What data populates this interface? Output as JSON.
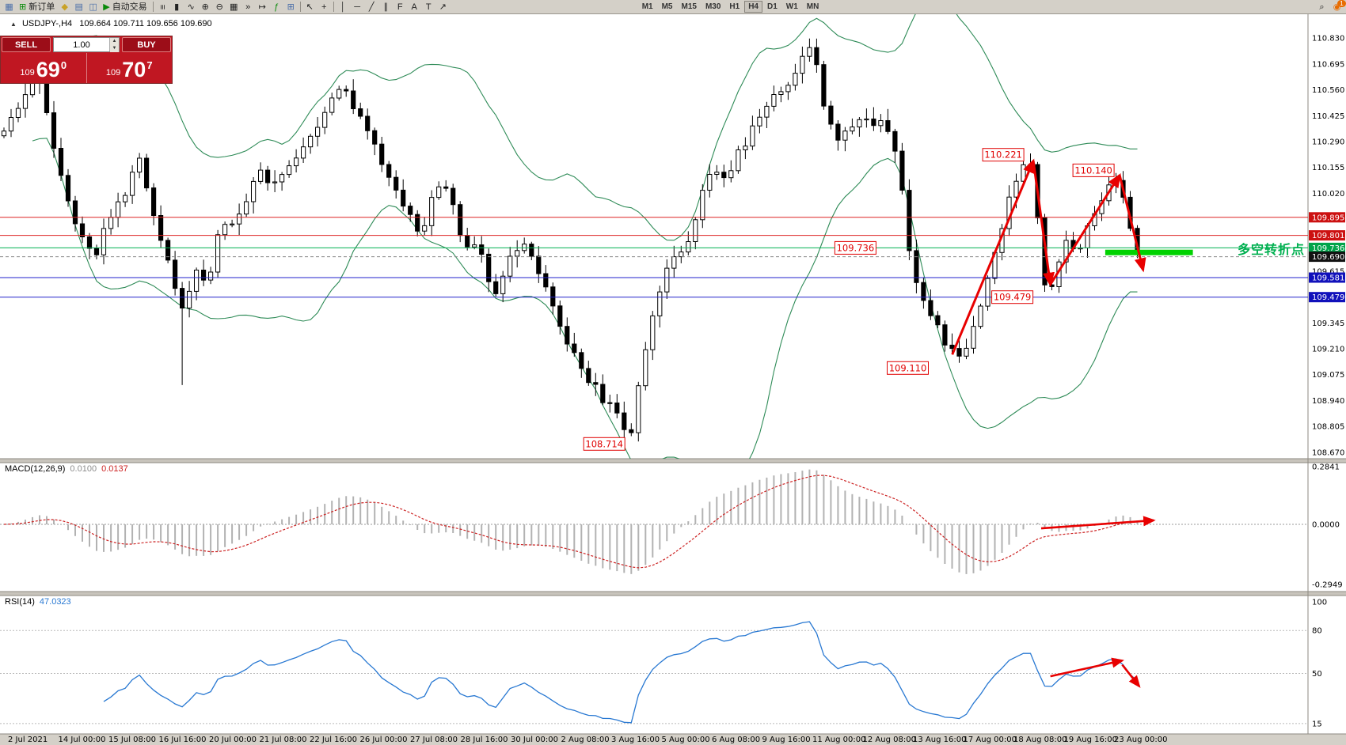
{
  "toolbar": {
    "new_order": {
      "label": "新订单",
      "icon": "⊞"
    },
    "auto_trading": {
      "label": "自动交易",
      "icon": "▶"
    },
    "left_icons": [
      {
        "name": "chart-window-icon",
        "glyph": "▦",
        "color": "#4a6ea9"
      }
    ],
    "quick_icons": [
      {
        "name": "favorites-icon",
        "glyph": "◆",
        "color": "#c9a227"
      },
      {
        "name": "navigator-icon",
        "glyph": "▤",
        "color": "#4a6ea9"
      },
      {
        "name": "terminal-icon",
        "glyph": "◫",
        "color": "#4a6ea9"
      }
    ],
    "chart_tool_icons": [
      {
        "name": "bar-chart-icon",
        "glyph": "≡",
        "rotate": true
      },
      {
        "name": "candlestick-chart-icon",
        "glyph": "▮"
      },
      {
        "name": "line-chart-icon",
        "glyph": "∿"
      },
      {
        "name": "zoom-in-icon",
        "glyph": "⊕"
      },
      {
        "name": "zoom-out-icon",
        "glyph": "⊖"
      },
      {
        "name": "tile-windows-icon",
        "glyph": "▦"
      },
      {
        "name": "auto-scroll-icon",
        "glyph": "»"
      },
      {
        "name": "chart-shift-icon",
        "glyph": "↦"
      },
      {
        "name": "indicators-icon",
        "glyph": "ƒ",
        "color": "#0a8a0a"
      },
      {
        "name": "new-chart-icon",
        "glyph": "⊞",
        "color": "#4a6ea9"
      }
    ],
    "cursor_icons": [
      {
        "name": "cursor-icon",
        "glyph": "↖"
      },
      {
        "name": "crosshair-icon",
        "glyph": "+"
      }
    ],
    "object_icons": [
      {
        "name": "vertical-line-icon",
        "glyph": "│"
      },
      {
        "name": "horizontal-line-icon",
        "glyph": "─"
      },
      {
        "name": "trendline-icon",
        "glyph": "╱"
      },
      {
        "name": "channel-icon",
        "glyph": "∥"
      },
      {
        "name": "fibonacci-icon",
        "glyph": "F"
      },
      {
        "name": "text-icon",
        "glyph": "A"
      },
      {
        "name": "label-icon",
        "glyph": "T"
      },
      {
        "name": "arrows-icon",
        "glyph": "↗"
      }
    ],
    "timeframes": [
      "M1",
      "M5",
      "M15",
      "M30",
      "H1",
      "H4",
      "D1",
      "W1",
      "MN"
    ],
    "active_timeframe": "H4",
    "right_icons": [
      {
        "name": "search-icon",
        "glyph": "⌕"
      },
      {
        "name": "notifications-icon",
        "glyph": "◉",
        "color": "#e86c00",
        "badge": "1"
      }
    ]
  },
  "chart_header": {
    "symbol_title": "USDJPY-,H4",
    "ohlc": "109.664 109.711 109.656 109.690"
  },
  "trade_panel": {
    "sell_label": "SELL",
    "buy_label": "BUY",
    "lot_size": "1.00",
    "sell_price_prefix": "109",
    "sell_price_big": "69",
    "sell_price_sup": "0",
    "buy_price_prefix": "109",
    "buy_price_big": "70",
    "buy_price_sup": "7"
  },
  "price_axis": {
    "ticks": [
      "110.830",
      "110.695",
      "110.560",
      "110.425",
      "110.290",
      "110.155",
      "110.020",
      "109.615",
      "109.345",
      "109.210",
      "109.075",
      "108.940",
      "108.805",
      "108.670"
    ]
  },
  "chart_data": {
    "type": "candlestick",
    "symbol": "USDJPY",
    "timeframe": "H4",
    "candle_count": 160,
    "candles_span": 0.872,
    "path_anchors": [
      [
        0.0,
        110.32
      ],
      [
        0.015,
        110.52
      ],
      [
        0.028,
        110.62
      ],
      [
        0.04,
        110.22
      ],
      [
        0.052,
        109.92
      ],
      [
        0.062,
        109.8
      ],
      [
        0.07,
        109.7
      ],
      [
        0.08,
        109.88
      ],
      [
        0.093,
        110.02
      ],
      [
        0.104,
        110.2
      ],
      [
        0.117,
        109.88
      ],
      [
        0.127,
        109.66
      ],
      [
        0.137,
        109.4
      ],
      [
        0.147,
        109.62
      ],
      [
        0.156,
        109.54
      ],
      [
        0.167,
        109.88
      ],
      [
        0.179,
        109.86
      ],
      [
        0.189,
        110.04
      ],
      [
        0.197,
        110.16
      ],
      [
        0.206,
        110.04
      ],
      [
        0.219,
        110.16
      ],
      [
        0.231,
        110.28
      ],
      [
        0.244,
        110.42
      ],
      [
        0.255,
        110.55
      ],
      [
        0.262,
        110.58
      ],
      [
        0.271,
        110.44
      ],
      [
        0.282,
        110.3
      ],
      [
        0.292,
        110.16
      ],
      [
        0.302,
        110.02
      ],
      [
        0.314,
        109.88
      ],
      [
        0.321,
        109.78
      ],
      [
        0.329,
        110.0
      ],
      [
        0.337,
        110.1
      ],
      [
        0.345,
        110.0
      ],
      [
        0.352,
        109.78
      ],
      [
        0.359,
        109.7
      ],
      [
        0.365,
        109.76
      ],
      [
        0.371,
        109.58
      ],
      [
        0.377,
        109.46
      ],
      [
        0.384,
        109.58
      ],
      [
        0.391,
        109.72
      ],
      [
        0.399,
        109.74
      ],
      [
        0.407,
        109.68
      ],
      [
        0.416,
        109.52
      ],
      [
        0.424,
        109.38
      ],
      [
        0.432,
        109.24
      ],
      [
        0.441,
        109.16
      ],
      [
        0.449,
        109.06
      ],
      [
        0.459,
        108.96
      ],
      [
        0.469,
        108.88
      ],
      [
        0.482,
        108.76
      ],
      [
        0.49,
        109.1
      ],
      [
        0.499,
        109.4
      ],
      [
        0.507,
        109.56
      ],
      [
        0.515,
        109.68
      ],
      [
        0.523,
        109.76
      ],
      [
        0.531,
        109.84
      ],
      [
        0.539,
        110.08
      ],
      [
        0.547,
        110.15
      ],
      [
        0.555,
        110.1
      ],
      [
        0.564,
        110.22
      ],
      [
        0.573,
        110.32
      ],
      [
        0.582,
        110.42
      ],
      [
        0.591,
        110.5
      ],
      [
        0.6,
        110.58
      ],
      [
        0.609,
        110.66
      ],
      [
        0.617,
        110.74
      ],
      [
        0.623,
        110.8
      ],
      [
        0.63,
        110.5
      ],
      [
        0.637,
        110.34
      ],
      [
        0.644,
        110.3
      ],
      [
        0.652,
        110.38
      ],
      [
        0.66,
        110.42
      ],
      [
        0.668,
        110.38
      ],
      [
        0.676,
        110.42
      ],
      [
        0.683,
        110.32
      ],
      [
        0.689,
        110.15
      ],
      [
        0.694,
        109.85
      ],
      [
        0.7,
        109.6
      ],
      [
        0.707,
        109.46
      ],
      [
        0.714,
        109.36
      ],
      [
        0.721,
        109.28
      ],
      [
        0.729,
        109.2
      ],
      [
        0.736,
        109.14
      ],
      [
        0.744,
        109.28
      ],
      [
        0.752,
        109.46
      ],
      [
        0.76,
        109.66
      ],
      [
        0.768,
        109.86
      ],
      [
        0.776,
        110.04
      ],
      [
        0.783,
        110.14
      ],
      [
        0.789,
        110.2
      ],
      [
        0.796,
        109.86
      ],
      [
        0.801,
        109.55
      ],
      [
        0.805,
        109.5
      ],
      [
        0.81,
        109.66
      ],
      [
        0.816,
        109.76
      ],
      [
        0.822,
        109.7
      ],
      [
        0.828,
        109.76
      ],
      [
        0.835,
        109.86
      ],
      [
        0.842,
        109.96
      ],
      [
        0.849,
        110.06
      ],
      [
        0.854,
        110.12
      ],
      [
        0.86,
        110.04
      ],
      [
        0.866,
        109.86
      ],
      [
        0.872,
        109.7
      ]
    ],
    "bollinger": {
      "period": 20,
      "deviation": 2,
      "color": "#2e8b57"
    },
    "key_levels": [
      {
        "label": "109.895",
        "value": 109.895,
        "line_color": "#dd2222",
        "badge_bg": "#cc1111",
        "dash": false
      },
      {
        "label": "109.801",
        "value": 109.801,
        "line_color": "#dd2222",
        "badge_bg": "#cc1111",
        "dash": false
      },
      {
        "label": "109.736",
        "value": 109.736,
        "line_color": "#00b050",
        "badge_bg": "#00a44a",
        "dash": false
      },
      {
        "label": "109.690",
        "value": 109.69,
        "line_color": "#888888",
        "badge_bg": "#111111",
        "dash": true
      },
      {
        "label": "109.581",
        "value": 109.581,
        "line_color": "#2222cc",
        "badge_bg": "#1111bb",
        "dash": false
      },
      {
        "label": "109.479",
        "value": 109.479,
        "line_color": "#2222cc",
        "badge_bg": "#1111bb",
        "dash": false
      }
    ],
    "annotations": {
      "price_labels": [
        {
          "text": "110.221",
          "xf": 0.767,
          "price": 110.221
        },
        {
          "text": "110.140",
          "xf": 0.836,
          "price": 110.14
        },
        {
          "text": "109.736",
          "xf": 0.654,
          "price": 109.736
        },
        {
          "text": "109.479",
          "xf": 0.774,
          "price": 109.479
        },
        {
          "text": "109.110",
          "xf": 0.694,
          "price": 109.11
        },
        {
          "text": "108.714",
          "xf": 0.462,
          "price": 108.714
        }
      ],
      "trend_arrows": [
        {
          "x1f": 0.728,
          "p1": 109.18,
          "x2f": 0.79,
          "p2": 110.19
        },
        {
          "x1f": 0.79,
          "p1": 110.19,
          "x2f": 0.803,
          "p2": 109.545
        },
        {
          "x1f": 0.803,
          "p1": 109.545,
          "x2f": 0.856,
          "p2": 110.115
        },
        {
          "x1f": 0.856,
          "p1": 110.115,
          "x2f": 0.874,
          "p2": 109.62
        }
      ],
      "highlight_bar": {
        "x1f": 0.845,
        "x2f": 0.912,
        "price": 109.712,
        "color": "#00d200",
        "thickness": 7
      },
      "pivot_text": {
        "text": "多空转折点",
        "color": "#00b050",
        "price": 109.732
      }
    },
    "indicators": {
      "macd": {
        "label": "MACD(12,26,9)",
        "main_value": "0.0100",
        "signal_value": "0.0137",
        "scale_max": "0.2841",
        "scale_zero": "0.0000",
        "scale_min": "-0.2949",
        "arrow": {
          "x1f": 0.796,
          "v1": -0.02,
          "x2f": 0.882,
          "v2": 0.02
        }
      },
      "rsi": {
        "label": "RSI(14)",
        "value": "47.0323",
        "scale": [
          "100",
          "80",
          "50",
          "15"
        ],
        "levels": [
          80,
          50,
          15
        ],
        "arrows": [
          {
            "x1f": 0.803,
            "v1": 48,
            "x2f": 0.858,
            "v2": 59
          },
          {
            "x1f": 0.858,
            "v1": 56,
            "x2f": 0.871,
            "v2": 41
          }
        ]
      }
    }
  },
  "time_axis": {
    "labels": [
      "2 Jul 2021",
      "14 Jul 00:00",
      "15 Jul 08:00",
      "16 Jul 16:00",
      "20 Jul 00:00",
      "21 Jul 08:00",
      "22 Jul 16:00",
      "26 Jul 00:00",
      "27 Jul 08:00",
      "28 Jul 16:00",
      "30 Jul 00:00",
      "2 Aug 08:00",
      "3 Aug 16:00",
      "5 Aug 00:00",
      "6 Aug 08:00",
      "9 Aug 16:00",
      "11 Aug 00:00",
      "12 Aug 08:00",
      "13 Aug 16:00",
      "17 Aug 00:00",
      "18 Aug 08:00",
      "19 Aug 16:00",
      "23 Aug 00:00"
    ]
  }
}
